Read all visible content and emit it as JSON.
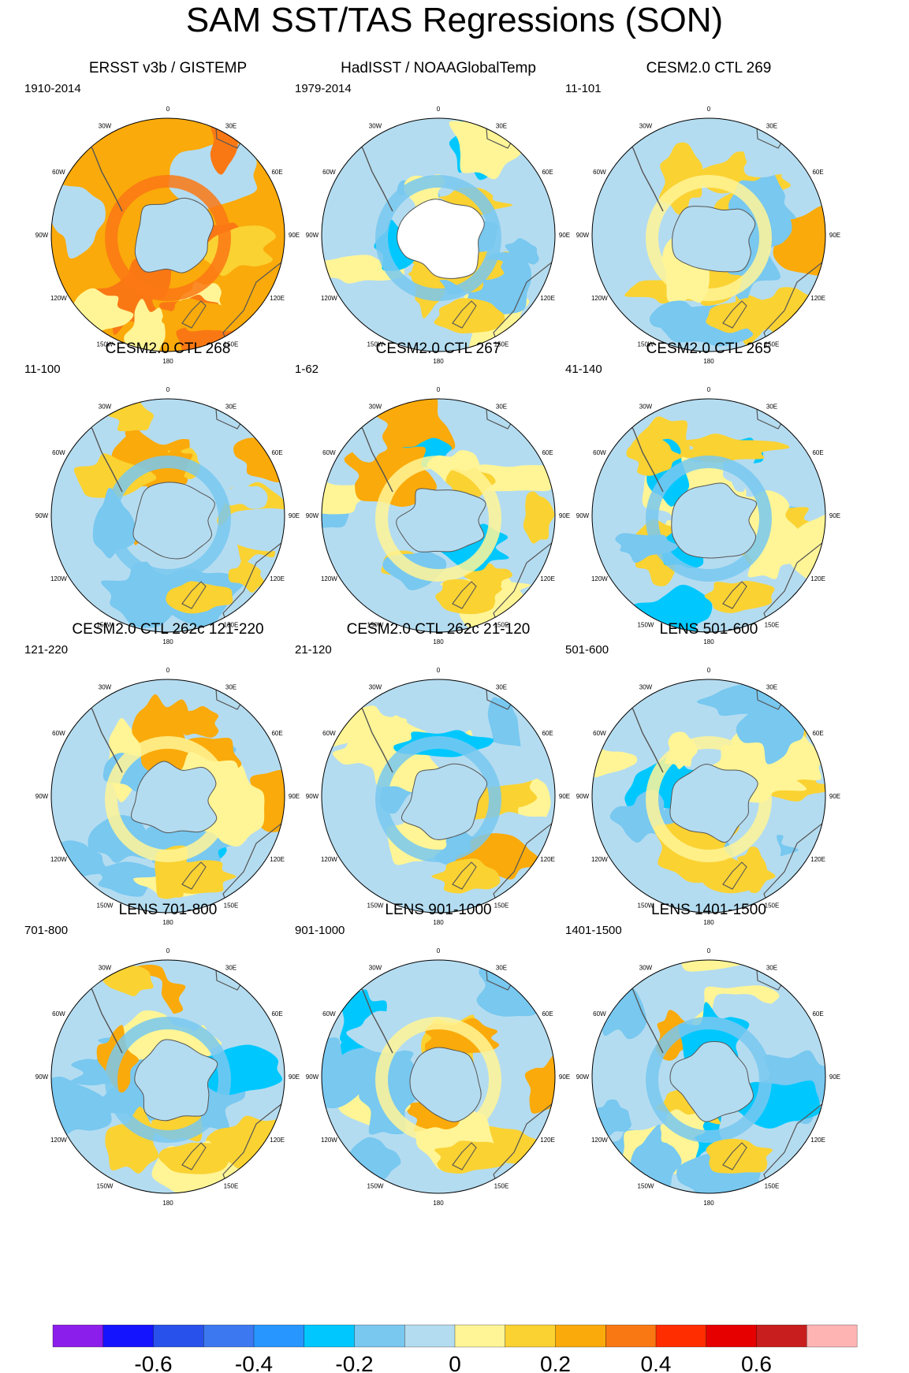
{
  "figure": {
    "title": "SAM SST/TAS Regressions (SON)"
  },
  "chart_data": {
    "type": "heatmap",
    "projection": "south-polar-stereographic",
    "title": "SAM SST/TAS Regressions (SON)",
    "longitude_labels": [
      "0",
      "30E",
      "60E",
      "90E",
      "120E",
      "150E",
      "180",
      "150W",
      "120W",
      "90W",
      "60W",
      "30W"
    ],
    "colorbar": {
      "levels": [
        -0.7,
        -0.6,
        -0.5,
        -0.4,
        -0.3,
        -0.2,
        -0.1,
        0,
        0.1,
        0.2,
        0.3,
        0.4,
        0.5,
        0.6,
        0.7
      ],
      "tick_labels": [
        "-0.6",
        "-0.4",
        "-0.2",
        "0",
        "0.2",
        "0.4",
        "0.6"
      ],
      "tick_values": [
        -0.6,
        -0.4,
        -0.2,
        0,
        0.2,
        0.4,
        0.6
      ],
      "colors": [
        "#8c1eeb",
        "#1414ff",
        "#2850eb",
        "#3c78f0",
        "#2896ff",
        "#00c8ff",
        "#78c8f0",
        "#b4dcf0",
        "#fff596",
        "#fad232",
        "#faaa0a",
        "#fa7814",
        "#ff2d00",
        "#e60000",
        "#c81e1e",
        "#ffb4b4"
      ]
    },
    "panels": [
      {
        "title": "ERSST v3b / GISTEMP",
        "period": "1910-2014"
      },
      {
        "title": "HadISST / NOAAGlobalTemp",
        "period": "1979-2014"
      },
      {
        "title": "CESM2.0 CTL 269",
        "period": "11-101"
      },
      {
        "title": "CESM2.0 CTL 268",
        "period": "11-100"
      },
      {
        "title": "CESM2.0 CTL 267",
        "period": "1-62"
      },
      {
        "title": "CESM2.0 CTL 265",
        "period": "41-140"
      },
      {
        "title": "CESM2.0 CTL 262c 121-220",
        "period": "121-220"
      },
      {
        "title": "CESM2.0 CTL 262c 21-120",
        "period": "21-120"
      },
      {
        "title": "LENS 501-600",
        "period": "501-600"
      },
      {
        "title": "LENS 701-800",
        "period": "701-800"
      },
      {
        "title": "LENS 901-1000",
        "period": "901-1000"
      },
      {
        "title": "LENS 1401-1500",
        "period": "1401-1500"
      }
    ]
  }
}
